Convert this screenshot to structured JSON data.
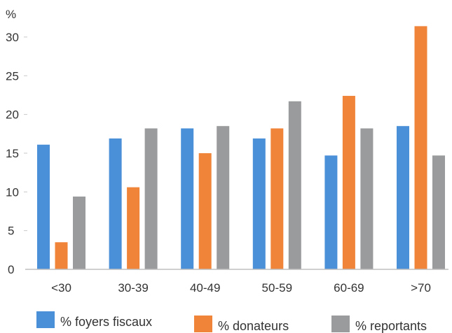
{
  "chart_data": {
    "type": "bar",
    "title": "",
    "xlabel": "",
    "ylabel": "%",
    "ylim": [
      0,
      33
    ],
    "yticks": [
      0,
      5,
      10,
      15,
      20,
      25,
      30
    ],
    "categories": [
      "<30",
      "30-39",
      "40-49",
      "50-59",
      "60-69",
      ">70"
    ],
    "series": [
      {
        "name": "% foyers fiscaux",
        "color": "#4a90d9",
        "values": [
          16.1,
          16.9,
          18.2,
          16.9,
          14.7,
          18.5
        ]
      },
      {
        "name": "% donateurs",
        "color": "#f0853a",
        "values": [
          3.5,
          10.6,
          15.0,
          18.2,
          22.4,
          31.4
        ]
      },
      {
        "name": "% reportants",
        "color": "#9a9b9c",
        "values": [
          9.4,
          18.2,
          18.5,
          21.7,
          18.2,
          14.7
        ]
      }
    ],
    "grid": false,
    "legend_position": "bottom"
  }
}
